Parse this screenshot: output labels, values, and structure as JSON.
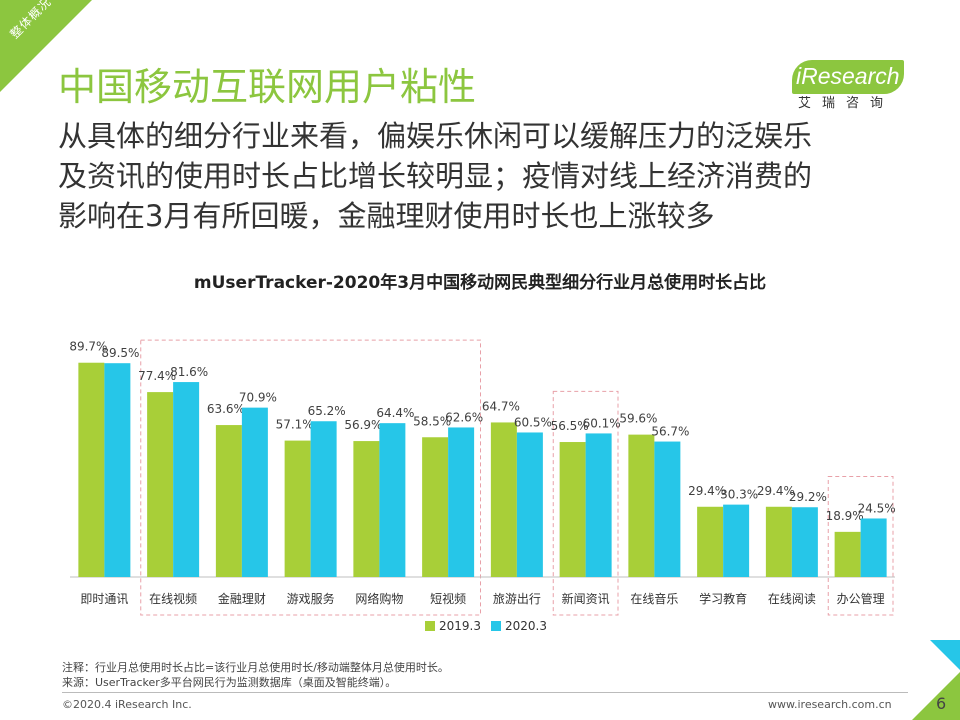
{
  "corner_tag": "整体概况",
  "title": "中国移动互联网用户粘性",
  "subtitle_lines": [
    "从具体的细分行业来看，偏娱乐休闲可以缓解压力的泛娱乐",
    "及资讯的使用时长占比增长较明显；疫情对线上经济消费的",
    "影响在3月有所回暖，金融理财使用时长也上涨较多"
  ],
  "logo": {
    "wordmark": "iResearch",
    "sub": "艾瑞咨询"
  },
  "colors": {
    "series_2019": "#a8cf38",
    "series_2020": "#26c6e8",
    "accent": "#8cc63f"
  },
  "chart_data": {
    "type": "bar",
    "title": "mUserTracker-2020年3月中国移动网民典型细分行业月总使用时长占比",
    "categories": [
      "即时通讯",
      "在线视频",
      "金融理财",
      "游戏服务",
      "网络购物",
      "短视频",
      "旅游出行",
      "新闻资讯",
      "在线音乐",
      "学习教育",
      "在线阅读",
      "办公管理"
    ],
    "series": [
      {
        "name": "2019.3",
        "values": [
          89.7,
          77.4,
          63.6,
          57.1,
          56.9,
          58.5,
          64.7,
          56.5,
          59.6,
          29.4,
          29.4,
          18.9
        ]
      },
      {
        "name": "2020.3",
        "values": [
          89.5,
          81.6,
          70.9,
          65.2,
          64.4,
          62.6,
          60.5,
          60.1,
          56.7,
          30.3,
          29.2,
          24.5
        ]
      }
    ],
    "value_labels": [
      [
        "89.7%",
        "77.4%",
        "63.6%",
        "57.1%",
        "56.9%",
        "58.5%",
        "64.7%",
        "56.5%",
        "59.6%",
        "29.4%",
        "29.4%",
        "18.9%"
      ],
      [
        "89.5%",
        "81.6%",
        "70.9%",
        "65.2%",
        "64.4%",
        "62.6%",
        "60.5%",
        "60.1%",
        "56.7%",
        "30.3%",
        "29.2%",
        "24.5%"
      ]
    ],
    "ylim": [
      0,
      100
    ],
    "grid": false,
    "legend": "bottom",
    "highlight_groups": [
      [
        1,
        5
      ],
      [
        7,
        7
      ],
      [
        11,
        11
      ]
    ]
  },
  "footnotes": [
    "注释：行业月总使用时长占比=该行业月总使用时长/移动端整体月总使用时长。",
    "来源：UserTracker多平台网民行为监测数据库（桌面及智能终端）。"
  ],
  "footer": {
    "copyright": "©2020.4 iResearch Inc.",
    "website": "www.iresearch.com.cn",
    "page_number": "6"
  }
}
